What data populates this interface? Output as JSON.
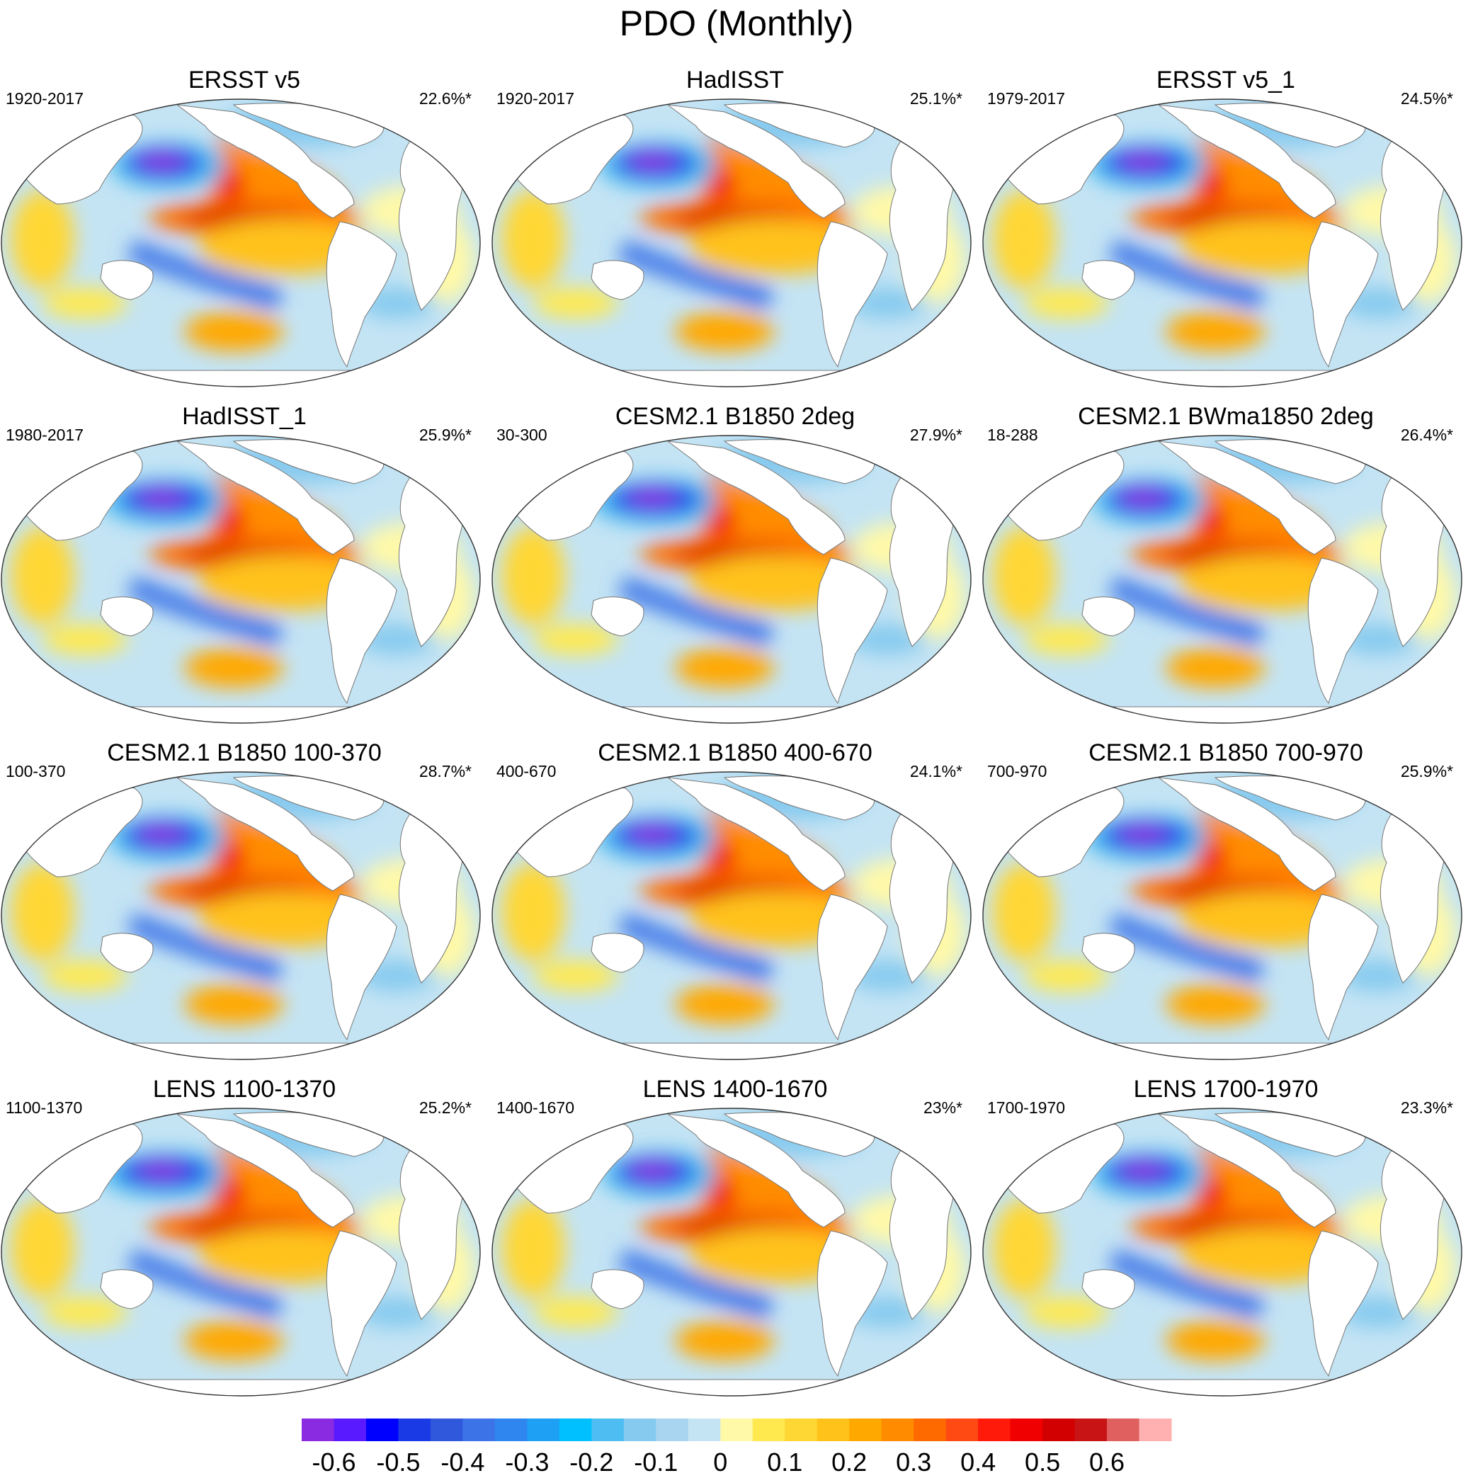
{
  "title": "PDO (Monthly)",
  "panels": [
    {
      "title": "ERSST v5",
      "period": "1920-2017",
      "variance": "22.6%*"
    },
    {
      "title": "HadISST",
      "period": "1920-2017",
      "variance": "25.1%*"
    },
    {
      "title": "ERSST v5_1",
      "period": "1979-2017",
      "variance": "24.5%*"
    },
    {
      "title": "HadISST_1",
      "period": "1980-2017",
      "variance": "25.9%*"
    },
    {
      "title": "CESM2.1 B1850 2deg",
      "period": "30-300",
      "variance": "27.9%*"
    },
    {
      "title": "CESM2.1 BWma1850 2deg",
      "period": "18-288",
      "variance": "26.4%*"
    },
    {
      "title": "CESM2.1 B1850 100-370",
      "period": "100-370",
      "variance": "28.7%*"
    },
    {
      "title": "CESM2.1 B1850 400-670",
      "period": "400-670",
      "variance": "24.1%*"
    },
    {
      "title": "CESM2.1 B1850 700-970",
      "period": "700-970",
      "variance": "25.9%*"
    },
    {
      "title": "LENS 1100-1370",
      "period": "1100-1370",
      "variance": "25.2%*"
    },
    {
      "title": "LENS 1400-1670",
      "period": "1400-1670",
      "variance": "23%*"
    },
    {
      "title": "LENS 1700-1970",
      "period": "1700-1970",
      "variance": "23.3%*"
    }
  ],
  "colorbar": {
    "colors": [
      "#8a2be2",
      "#5a1aff",
      "#0000ff",
      "#1a3ae6",
      "#3058dc",
      "#3c74e8",
      "#2e86ee",
      "#1ea0f5",
      "#00c0ff",
      "#4dbdf2",
      "#86caef",
      "#a9d5f0",
      "#c4e4f4",
      "#fff9a8",
      "#ffe94f",
      "#ffd735",
      "#ffc21a",
      "#ffa800",
      "#ff8c00",
      "#ff6a00",
      "#ff4a14",
      "#ff1a0a",
      "#f00000",
      "#d20000",
      "#c81414",
      "#e06060",
      "#ffb0b0"
    ],
    "labels": [
      "-0.6",
      "-0.5",
      "-0.4",
      "-0.3",
      "-0.2",
      "-0.1",
      "0",
      "0.1",
      "0.2",
      "0.3",
      "0.4",
      "0.5",
      "0.6"
    ]
  }
}
